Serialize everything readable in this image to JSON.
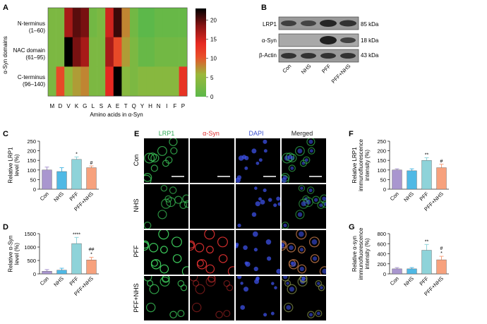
{
  "panel_labels": {
    "A": "A",
    "B": "B",
    "C": "C",
    "D": "D",
    "E": "E",
    "F": "F",
    "G": "G"
  },
  "panel_a": {
    "row_labels": [
      {
        "name": "N-terminus",
        "range": "(1–60)"
      },
      {
        "name": "NAC domain",
        "range": "(61–95)"
      },
      {
        "name": "C-terminus",
        "range": "(96–140)"
      }
    ],
    "ylabel": "α-Syn domains",
    "xlabel": "Amino acids in α-Syn",
    "colorbar_ticks": [
      "20",
      "15",
      "10",
      "5",
      "0"
    ]
  },
  "chart_data": [
    {
      "type": "heatmap",
      "panel": "A",
      "xlabel": "Amino acids in α-Syn",
      "ylabel": "α-Syn domains",
      "categories": [
        "M",
        "D",
        "V",
        "K",
        "G",
        "L",
        "S",
        "A",
        "E",
        "T",
        "Q",
        "Y",
        "H",
        "N",
        "I",
        "F",
        "P"
      ],
      "rows": [
        "N-terminus (1–60)",
        "NAC domain (61–95)",
        "C-terminus (96–140)"
      ],
      "values": [
        [
          3,
          3,
          17,
          20,
          19,
          2,
          3,
          15,
          21,
          8,
          2,
          0,
          0,
          1,
          1,
          1,
          1
        ],
        [
          3,
          3,
          23,
          19,
          17,
          3,
          3,
          17,
          11,
          7,
          3,
          1,
          1,
          2,
          2,
          2,
          2
        ],
        [
          3,
          11,
          5,
          7,
          8,
          3,
          3,
          14,
          23,
          4,
          3,
          4,
          4,
          4,
          4,
          4,
          13
        ]
      ],
      "colorbar_range": [
        0,
        23
      ],
      "colorbar_ticks": [
        0,
        5,
        10,
        15,
        20
      ]
    },
    {
      "type": "bar",
      "panel": "C",
      "categories": [
        "Con",
        "NHS",
        "PFF",
        "PFF+NHS"
      ],
      "values": [
        100,
        92,
        155,
        112
      ],
      "errors": [
        15,
        20,
        13,
        9
      ],
      "annotations": [
        "",
        "",
        "*",
        "#"
      ],
      "ylabel": "Relative LRP1 level (%)",
      "ylim": [
        0,
        250
      ],
      "yticks": [
        0,
        50,
        100,
        150,
        200,
        250
      ]
    },
    {
      "type": "bar",
      "panel": "D",
      "categories": [
        "Con",
        "NHS",
        "PFF",
        "PFF+NHS"
      ],
      "values": [
        100,
        140,
        1130,
        520
      ],
      "errors": [
        60,
        70,
        230,
        100
      ],
      "annotations": [
        "",
        "",
        "****",
        "##\n*"
      ],
      "ylabel": "Relative α-Syn level (%)",
      "ylim": [
        0,
        1500
      ],
      "yticks": [
        0,
        500,
        1000,
        1500
      ]
    },
    {
      "type": "bar",
      "panel": "F",
      "categories": [
        "Con",
        "NHS",
        "PFF",
        "PFF+NHS"
      ],
      "values": [
        100,
        96,
        150,
        112
      ],
      "errors": [
        6,
        10,
        14,
        18
      ],
      "annotations": [
        "",
        "",
        "**",
        "#"
      ],
      "ylabel": "Relative LRP1 immunofluorescence intensity (%)",
      "ylim": [
        0,
        250
      ],
      "yticks": [
        0,
        50,
        100,
        150,
        200,
        250
      ]
    },
    {
      "type": "bar",
      "panel": "G",
      "categories": [
        "Con",
        "NHS",
        "PFF",
        "PFF+NHS"
      ],
      "values": [
        100,
        100,
        470,
        280
      ],
      "errors": [
        25,
        25,
        115,
        70
      ],
      "annotations": [
        "",
        "",
        "**",
        "#\n*"
      ],
      "ylabel": "Relative α-syn immunofluorescence intensity (%)",
      "ylim": [
        0,
        800
      ],
      "yticks": [
        0,
        200,
        400,
        600,
        800
      ]
    }
  ],
  "panel_b": {
    "bands": [
      {
        "label": "LRP1",
        "kda": "85 kDa"
      },
      {
        "label": "α-Syn",
        "kda": "18 kDa"
      },
      {
        "label": "β-Actin",
        "kda": "43 kDa"
      }
    ],
    "lanes": [
      "Con",
      "NHS",
      "PFF",
      "PFF+NHS"
    ]
  },
  "panel_e": {
    "columns": [
      {
        "label": "LRP1",
        "color": "#2eaa55"
      },
      {
        "label": "α-Syn",
        "color": "#e03030"
      },
      {
        "label": "DAPI",
        "color": "#3a4fd0"
      },
      {
        "label": "Merged",
        "color": "#222222"
      }
    ],
    "rows": [
      "Con",
      "NHS",
      "PFF",
      "PFF+NHS"
    ]
  },
  "colors": {
    "con": "#a996cf",
    "nhs": "#4fb9e5",
    "pff": "#8ed3d9",
    "pffnhs": "#f7a17d"
  }
}
